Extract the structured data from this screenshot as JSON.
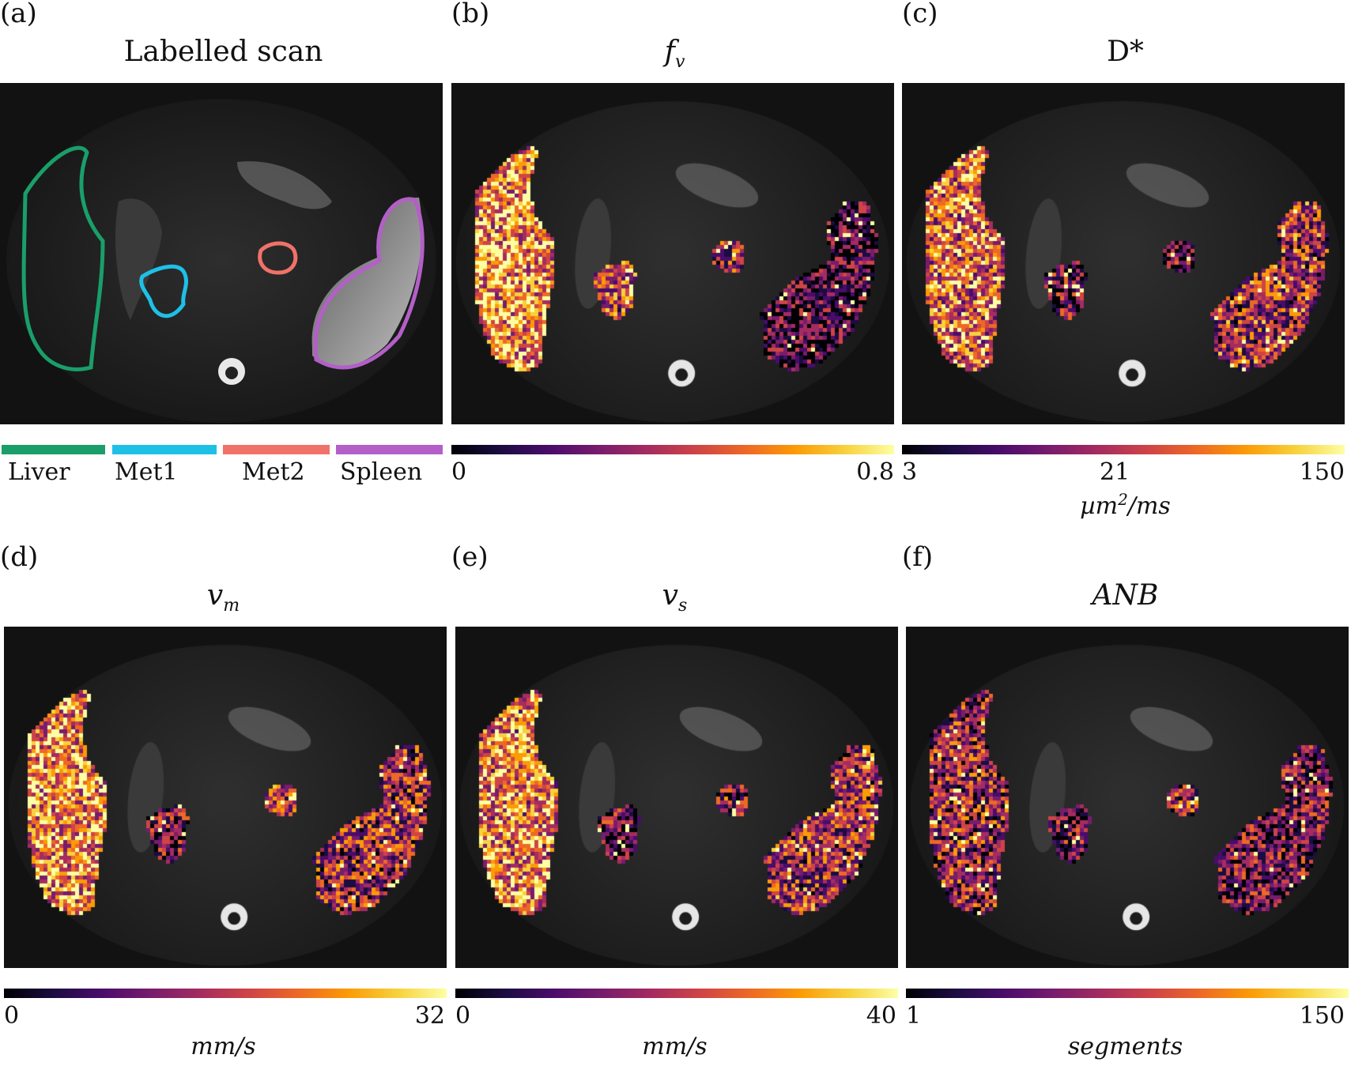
{
  "panels": [
    {
      "label": "(a)",
      "title": "Labelled scan"
    },
    {
      "label": "(b)",
      "title": "fv",
      "title_main": "f",
      "title_sub": "v"
    },
    {
      "label": "(c)",
      "title": "D*"
    },
    {
      "label": "(d)",
      "title": "vm",
      "title_main": "v",
      "title_sub": "m"
    },
    {
      "label": "(e)",
      "title": "vs",
      "title_main": "v",
      "title_sub": "s"
    },
    {
      "label": "(f)",
      "title": "ANB"
    }
  ],
  "legend": {
    "items": [
      {
        "name": "Liver",
        "color": "#1a9e6a"
      },
      {
        "name": "Met1",
        "color": "#1ec0e6"
      },
      {
        "name": "Met2",
        "color": "#f07268"
      },
      {
        "name": "Spleen",
        "color": "#b45fc8"
      }
    ]
  },
  "colorbars": {
    "b": {
      "min": "0",
      "max": "0.8",
      "unit": ""
    },
    "c": {
      "min": "3",
      "mid": "21",
      "max": "150",
      "unit": "µm²/ms",
      "unit_main": "µm",
      "unit_sup": "2",
      "unit_rest": "/ms"
    },
    "d": {
      "min": "0",
      "max": "32",
      "unit": "mm/s"
    },
    "e": {
      "min": "0",
      "max": "40",
      "unit": "mm/s"
    },
    "f": {
      "min": "1",
      "max": "150",
      "unit": "segments"
    }
  },
  "colormap": "inferno",
  "colors": {
    "background": "#ffffff",
    "scan_background": "#121212",
    "inferno": [
      "#000004",
      "#1b0c41",
      "#4a0c6b",
      "#781c6d",
      "#a52c60",
      "#cf4446",
      "#ed6925",
      "#fb9b06",
      "#f7d13d",
      "#fcffa4"
    ]
  }
}
